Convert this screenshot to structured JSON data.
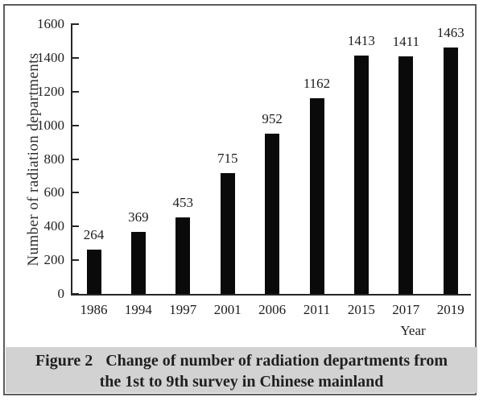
{
  "figure": {
    "caption_prefix": "Figure 2",
    "caption_line1_rest": "Change of number of radiation departments from",
    "caption_line2": "the 1st to 9th survey in Chinese mainland"
  },
  "chart_data": {
    "type": "bar",
    "title": "",
    "categories": [
      "1986",
      "1994",
      "1997",
      "2001",
      "2006",
      "2011",
      "2015",
      "2017",
      "2019"
    ],
    "values": [
      264,
      369,
      453,
      715,
      952,
      1162,
      1413,
      1411,
      1463
    ],
    "xlabel": "Year",
    "ylabel": "Number of radiation departments",
    "ylim": [
      0,
      1600
    ],
    "ytick_step": 200,
    "yticks": [
      0,
      200,
      400,
      600,
      800,
      1000,
      1200,
      1400,
      1600
    ],
    "grid": false,
    "legend_position": "none",
    "bar_color": "#0a0a0a",
    "value_labels_shown": true
  },
  "colors": {
    "caption_bg": "#d2d2d2",
    "frame_border": "#5c5c5c",
    "axis": "#262626",
    "text": "#1c1c1c"
  }
}
